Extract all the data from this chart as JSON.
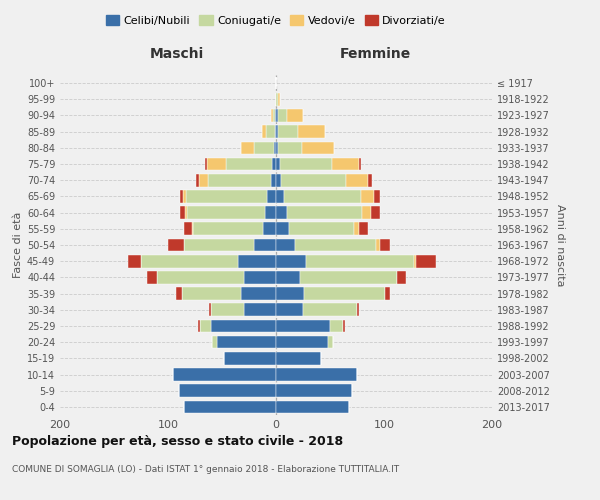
{
  "age_groups": [
    "0-4",
    "5-9",
    "10-14",
    "15-19",
    "20-24",
    "25-29",
    "30-34",
    "35-39",
    "40-44",
    "45-49",
    "50-54",
    "55-59",
    "60-64",
    "65-69",
    "70-74",
    "75-79",
    "80-84",
    "85-89",
    "90-94",
    "95-99",
    "100+"
  ],
  "birth_years": [
    "2013-2017",
    "2008-2012",
    "2003-2007",
    "1998-2002",
    "1993-1997",
    "1988-1992",
    "1983-1987",
    "1978-1982",
    "1973-1977",
    "1968-1972",
    "1963-1967",
    "1958-1962",
    "1953-1957",
    "1948-1952",
    "1943-1947",
    "1938-1942",
    "1933-1937",
    "1928-1932",
    "1923-1927",
    "1918-1922",
    "≤ 1917"
  ],
  "maschi": {
    "celibi": [
      85,
      90,
      95,
      48,
      55,
      60,
      30,
      32,
      30,
      35,
      20,
      12,
      10,
      8,
      5,
      4,
      2,
      1,
      1,
      0,
      0
    ],
    "coniugati": [
      0,
      0,
      0,
      0,
      4,
      10,
      30,
      55,
      80,
      90,
      65,
      65,
      72,
      75,
      58,
      42,
      18,
      8,
      2,
      0,
      0
    ],
    "vedovi": [
      0,
      0,
      0,
      0,
      0,
      0,
      0,
      0,
      0,
      0,
      0,
      1,
      2,
      3,
      8,
      18,
      12,
      4,
      2,
      0,
      0
    ],
    "divorziati": [
      0,
      0,
      0,
      0,
      0,
      2,
      2,
      6,
      9,
      12,
      15,
      7,
      5,
      3,
      3,
      2,
      0,
      0,
      0,
      0,
      0
    ]
  },
  "femmine": {
    "nubili": [
      68,
      70,
      75,
      42,
      48,
      50,
      25,
      26,
      22,
      28,
      18,
      12,
      10,
      7,
      5,
      4,
      2,
      2,
      2,
      0,
      0
    ],
    "coniugate": [
      0,
      0,
      0,
      0,
      5,
      12,
      50,
      75,
      90,
      100,
      75,
      60,
      70,
      72,
      60,
      48,
      22,
      18,
      8,
      2,
      0
    ],
    "vedove": [
      0,
      0,
      0,
      0,
      0,
      0,
      0,
      0,
      0,
      2,
      3,
      5,
      8,
      12,
      20,
      25,
      30,
      25,
      15,
      2,
      0
    ],
    "divorziate": [
      0,
      0,
      0,
      0,
      0,
      2,
      2,
      5,
      8,
      18,
      10,
      8,
      8,
      5,
      4,
      2,
      0,
      0,
      0,
      0,
      0
    ]
  },
  "colors": {
    "celibi": "#3a6fa8",
    "coniugati": "#c5d8a0",
    "vedovi": "#f5c76e",
    "divorziati": "#c0392b"
  },
  "title1": "Popolazione per età, sesso e stato civile - 2018",
  "title2": "COMUNE DI SOMAGLIA (LO) - Dati ISTAT 1° gennaio 2018 - Elaborazione TUTTITALIA.IT",
  "xlabel_left": "Maschi",
  "xlabel_right": "Femmine",
  "ylabel_left": "Fasce di età",
  "ylabel_right": "Anni di nascita",
  "xlim": 200,
  "legend_labels": [
    "Celibi/Nubili",
    "Coniugati/e",
    "Vedovi/e",
    "Divorziati/e"
  ],
  "bg_color": "#f0f0f0"
}
